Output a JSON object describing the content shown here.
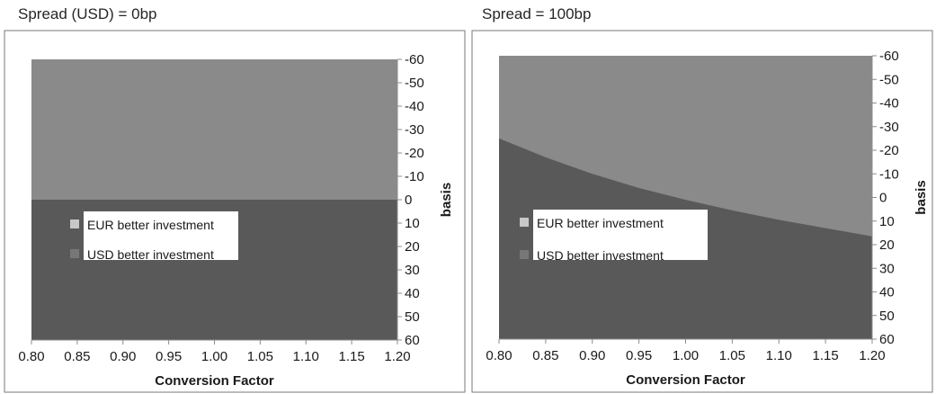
{
  "chart_data": [
    {
      "type": "area",
      "title": "Spread (USD) = 0bp",
      "xlabel": "Conversion Factor",
      "ylabel": "basis",
      "x_ticks": [
        "0.80",
        "0.85",
        "0.90",
        "0.95",
        "1.00",
        "1.05",
        "1.10",
        "1.15",
        "1.20"
      ],
      "y_ticks": [
        "-60",
        "-50",
        "-40",
        "-30",
        "-20",
        "-10",
        "0",
        "10",
        "20",
        "30",
        "40",
        "50",
        "60"
      ],
      "xlim": [
        0.8,
        1.2
      ],
      "ylim": [
        -60,
        60
      ],
      "y_axis_side": "right",
      "y_axis_inverted": true,
      "boundary": {
        "x": [
          0.8,
          1.2
        ],
        "y": [
          0,
          0
        ]
      },
      "series": [
        {
          "name": "EUR better investment",
          "color": "#8a8a8a",
          "region": "above boundary"
        },
        {
          "name": "USD better investment",
          "color": "#595959",
          "region": "below boundary"
        }
      ],
      "legend_position": "left-center",
      "grid": false
    },
    {
      "type": "area",
      "title": "Spread = 100bp",
      "xlabel": "Conversion Factor",
      "ylabel": "basis",
      "x_ticks": [
        "0.80",
        "0.85",
        "0.90",
        "0.95",
        "1.00",
        "1.05",
        "1.10",
        "1.15",
        "1.20"
      ],
      "y_ticks": [
        "-60",
        "-50",
        "-40",
        "-30",
        "-20",
        "-10",
        "0",
        "10",
        "20",
        "30",
        "40",
        "50",
        "60"
      ],
      "xlim": [
        0.8,
        1.2
      ],
      "ylim": [
        -60,
        60
      ],
      "y_axis_side": "right",
      "y_axis_inverted": true,
      "boundary": {
        "x": [
          0.8,
          0.85,
          0.9,
          0.95,
          1.0,
          1.05,
          1.1,
          1.15,
          1.2
        ],
        "y": [
          -25,
          -17,
          -10,
          -4,
          1,
          5.5,
          9.5,
          13,
          16.5
        ]
      },
      "series": [
        {
          "name": "EUR better investment",
          "color": "#8a8a8a",
          "region": "above boundary"
        },
        {
          "name": "USD better investment",
          "color": "#595959",
          "region": "below boundary"
        }
      ],
      "legend_position": "left-center",
      "grid": false
    }
  ]
}
